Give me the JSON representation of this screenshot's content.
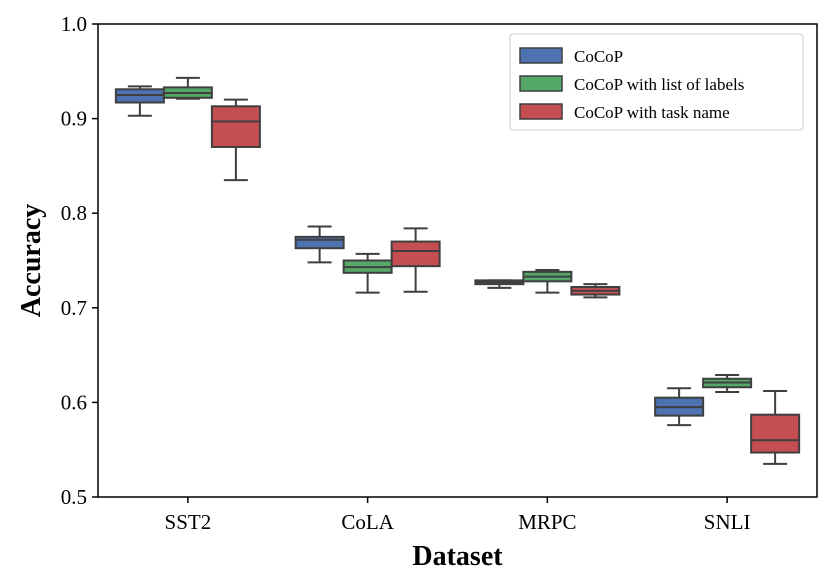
{
  "chart_data": {
    "type": "box",
    "title": "",
    "xlabel": "Dataset",
    "ylabel": "Accuracy",
    "ylim": [
      0.5,
      1.0
    ],
    "yticks": [
      0.5,
      0.6,
      0.7,
      0.8,
      0.9,
      1.0
    ],
    "ytick_labels": [
      "0.5",
      "0.6",
      "0.7",
      "0.8",
      "0.9",
      "1.0"
    ],
    "categories": [
      "SST2",
      "CoLA",
      "MRPC",
      "SNLI"
    ],
    "legend_position": "top-right",
    "series": [
      {
        "name": "CoCoP",
        "color": "#4c72b0",
        "boxes": [
          {
            "whisker_low": 0.903,
            "q1": 0.917,
            "median": 0.925,
            "q3": 0.931,
            "whisker_high": 0.934
          },
          {
            "whisker_low": 0.748,
            "q1": 0.763,
            "median": 0.772,
            "q3": 0.775,
            "whisker_high": 0.786
          },
          {
            "whisker_low": 0.721,
            "q1": 0.725,
            "median": 0.727,
            "q3": 0.729,
            "whisker_high": 0.729
          },
          {
            "whisker_low": 0.576,
            "q1": 0.586,
            "median": 0.595,
            "q3": 0.605,
            "whisker_high": 0.615
          }
        ]
      },
      {
        "name": "CoCoP with list of labels",
        "color": "#55a868",
        "boxes": [
          {
            "whisker_low": 0.921,
            "q1": 0.922,
            "median": 0.927,
            "q3": 0.933,
            "whisker_high": 0.943
          },
          {
            "whisker_low": 0.716,
            "q1": 0.737,
            "median": 0.743,
            "q3": 0.75,
            "whisker_high": 0.757
          },
          {
            "whisker_low": 0.716,
            "q1": 0.728,
            "median": 0.733,
            "q3": 0.738,
            "whisker_high": 0.74
          },
          {
            "whisker_low": 0.611,
            "q1": 0.616,
            "median": 0.621,
            "q3": 0.625,
            "whisker_high": 0.629
          }
        ]
      },
      {
        "name": "CoCoP with task name",
        "color": "#c44e52",
        "boxes": [
          {
            "whisker_low": 0.835,
            "q1": 0.87,
            "median": 0.897,
            "q3": 0.913,
            "whisker_high": 0.92
          },
          {
            "whisker_low": 0.717,
            "q1": 0.744,
            "median": 0.76,
            "q3": 0.77,
            "whisker_high": 0.784
          },
          {
            "whisker_low": 0.711,
            "q1": 0.714,
            "median": 0.718,
            "q3": 0.722,
            "whisker_high": 0.725
          },
          {
            "whisker_low": 0.535,
            "q1": 0.547,
            "median": 0.56,
            "q3": 0.587,
            "whisker_high": 0.612
          }
        ]
      }
    ]
  }
}
